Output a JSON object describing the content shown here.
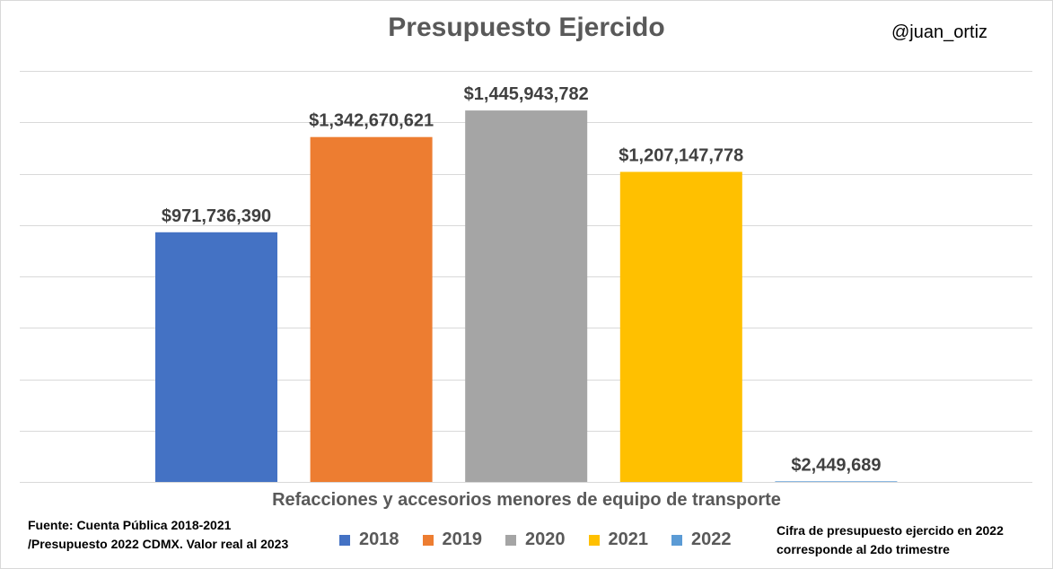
{
  "header": {
    "title": "Presupuesto Ejercido",
    "handle": "@juan_ortiz"
  },
  "footer": {
    "source_line1": "Fuente: Cuenta Pública 2018-2021",
    "source_line2": "/Presupuesto 2022 CDMX. Valor real al 2023",
    "note_line1": "Cifra de presupuesto ejercido en 2022",
    "note_line2": "corresponde al 2do trimestre"
  },
  "chart_data": {
    "type": "bar",
    "title": "Presupuesto Ejercido",
    "xlabel": "Refacciones y accesorios menores de equipo de transporte",
    "ylabel": "",
    "categories": [
      "Refacciones y accesorios menores de equipo de transporte"
    ],
    "series": [
      {
        "name": "2018",
        "values": [
          971736390
        ],
        "label": "$971,736,390",
        "color": "#4472c4"
      },
      {
        "name": "2019",
        "values": [
          1342670621
        ],
        "label": "$1,342,670,621",
        "color": "#ed7d31"
      },
      {
        "name": "2020",
        "values": [
          1445943782
        ],
        "label": "$1,445,943,782",
        "color": "#a5a5a5"
      },
      {
        "name": "2021",
        "values": [
          1207147778
        ],
        "label": "$1,207,147,778",
        "color": "#ffc000"
      },
      {
        "name": "2022",
        "values": [
          2449689
        ],
        "label": "$2,449,689",
        "color": "#5b9bd5"
      }
    ],
    "ylim": [
      0,
      1600000000
    ],
    "grid": true,
    "legend": "bottom"
  }
}
